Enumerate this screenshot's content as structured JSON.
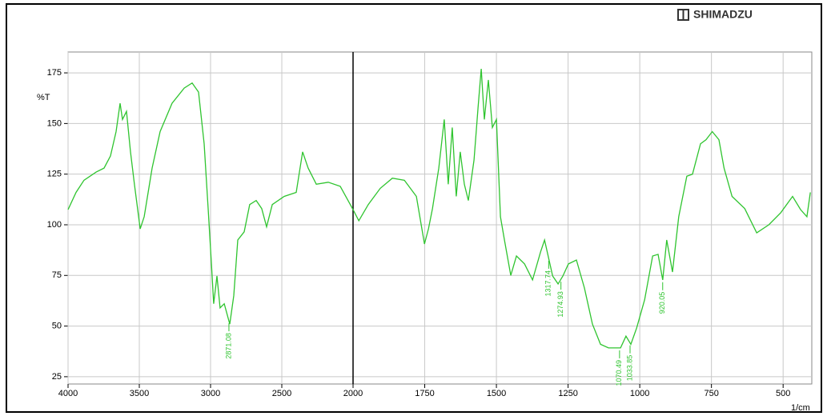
{
  "chart_data": {
    "type": "line",
    "brand": "SHIMADZU",
    "ylabel": "%T",
    "xlabel": "1/cm",
    "xlim": [
      4000,
      400
    ],
    "x_scale_break": 2000,
    "ylim": [
      21.4,
      185.3
    ],
    "xticks": [
      4000,
      3500,
      3000,
      2500,
      2000,
      1750,
      1500,
      1250,
      1000,
      750,
      500
    ],
    "yticks": [
      25,
      50,
      75,
      100,
      125,
      150,
      175
    ],
    "grid": true,
    "x": [
      4000,
      3944,
      3888,
      3803,
      3747,
      3702,
      3663,
      3635,
      3618,
      3590,
      3562,
      3534,
      3494,
      3466,
      3410,
      3354,
      3270,
      3185,
      3129,
      3084,
      3045,
      3017,
      2994,
      2978,
      2955,
      2933,
      2904,
      2865,
      2837,
      2809,
      2764,
      2725,
      2680,
      2641,
      2607,
      2567,
      2483,
      2399,
      2354,
      2315,
      2258,
      2174,
      2090,
      2000,
      1980,
      1947,
      1905,
      1863,
      1821,
      1779,
      1751,
      1737,
      1723,
      1701,
      1682,
      1668,
      1654,
      1640,
      1626,
      1612,
      1598,
      1578,
      1564,
      1553,
      1542,
      1528,
      1514,
      1500,
      1486,
      1472,
      1450,
      1430,
      1402,
      1374,
      1346,
      1332,
      1304,
      1285,
      1268,
      1249,
      1221,
      1193,
      1165,
      1137,
      1109,
      1067,
      1048,
      1031,
      1011,
      983,
      955,
      936,
      920,
      906,
      886,
      864,
      836,
      816,
      788,
      769,
      747,
      724,
      706,
      678,
      634,
      592,
      550,
      508,
      467,
      439,
      417,
      405
    ],
    "series": [
      {
        "color": "#2fc42f",
        "values": [
          107.5,
          116,
          122,
          126,
          128,
          134,
          146,
          160,
          152,
          156,
          136,
          120,
          98,
          104,
          128,
          146,
          160,
          167.5,
          170,
          165.5,
          140,
          108,
          80.7,
          61,
          74.7,
          59,
          61,
          51,
          65,
          92.5,
          96.5,
          110,
          112,
          108,
          99,
          110,
          114,
          116,
          136,
          128,
          120,
          121,
          119,
          107.5,
          102,
          110,
          118,
          123,
          122,
          114,
          90.5,
          98,
          108,
          128,
          152,
          120,
          148,
          114,
          136,
          120,
          112,
          132,
          157.7,
          177,
          152,
          171.5,
          148,
          152,
          104,
          92.5,
          75,
          84.6,
          80.7,
          72.8,
          86.6,
          92.5,
          74.7,
          70.8,
          74.7,
          80.7,
          82.6,
          68.8,
          51,
          41,
          39.2,
          39.2,
          45,
          41,
          49,
          63,
          84.6,
          85.4,
          72.8,
          92.5,
          76.7,
          104,
          124,
          125,
          140,
          142,
          146,
          142,
          128,
          114,
          108,
          96,
          100,
          106,
          114,
          107.5,
          104,
          116
        ]
      }
    ],
    "peak_labels": [
      2871.08,
      1317.74,
      1274.93,
      1070.49,
      1033.85,
      920.05
    ]
  }
}
